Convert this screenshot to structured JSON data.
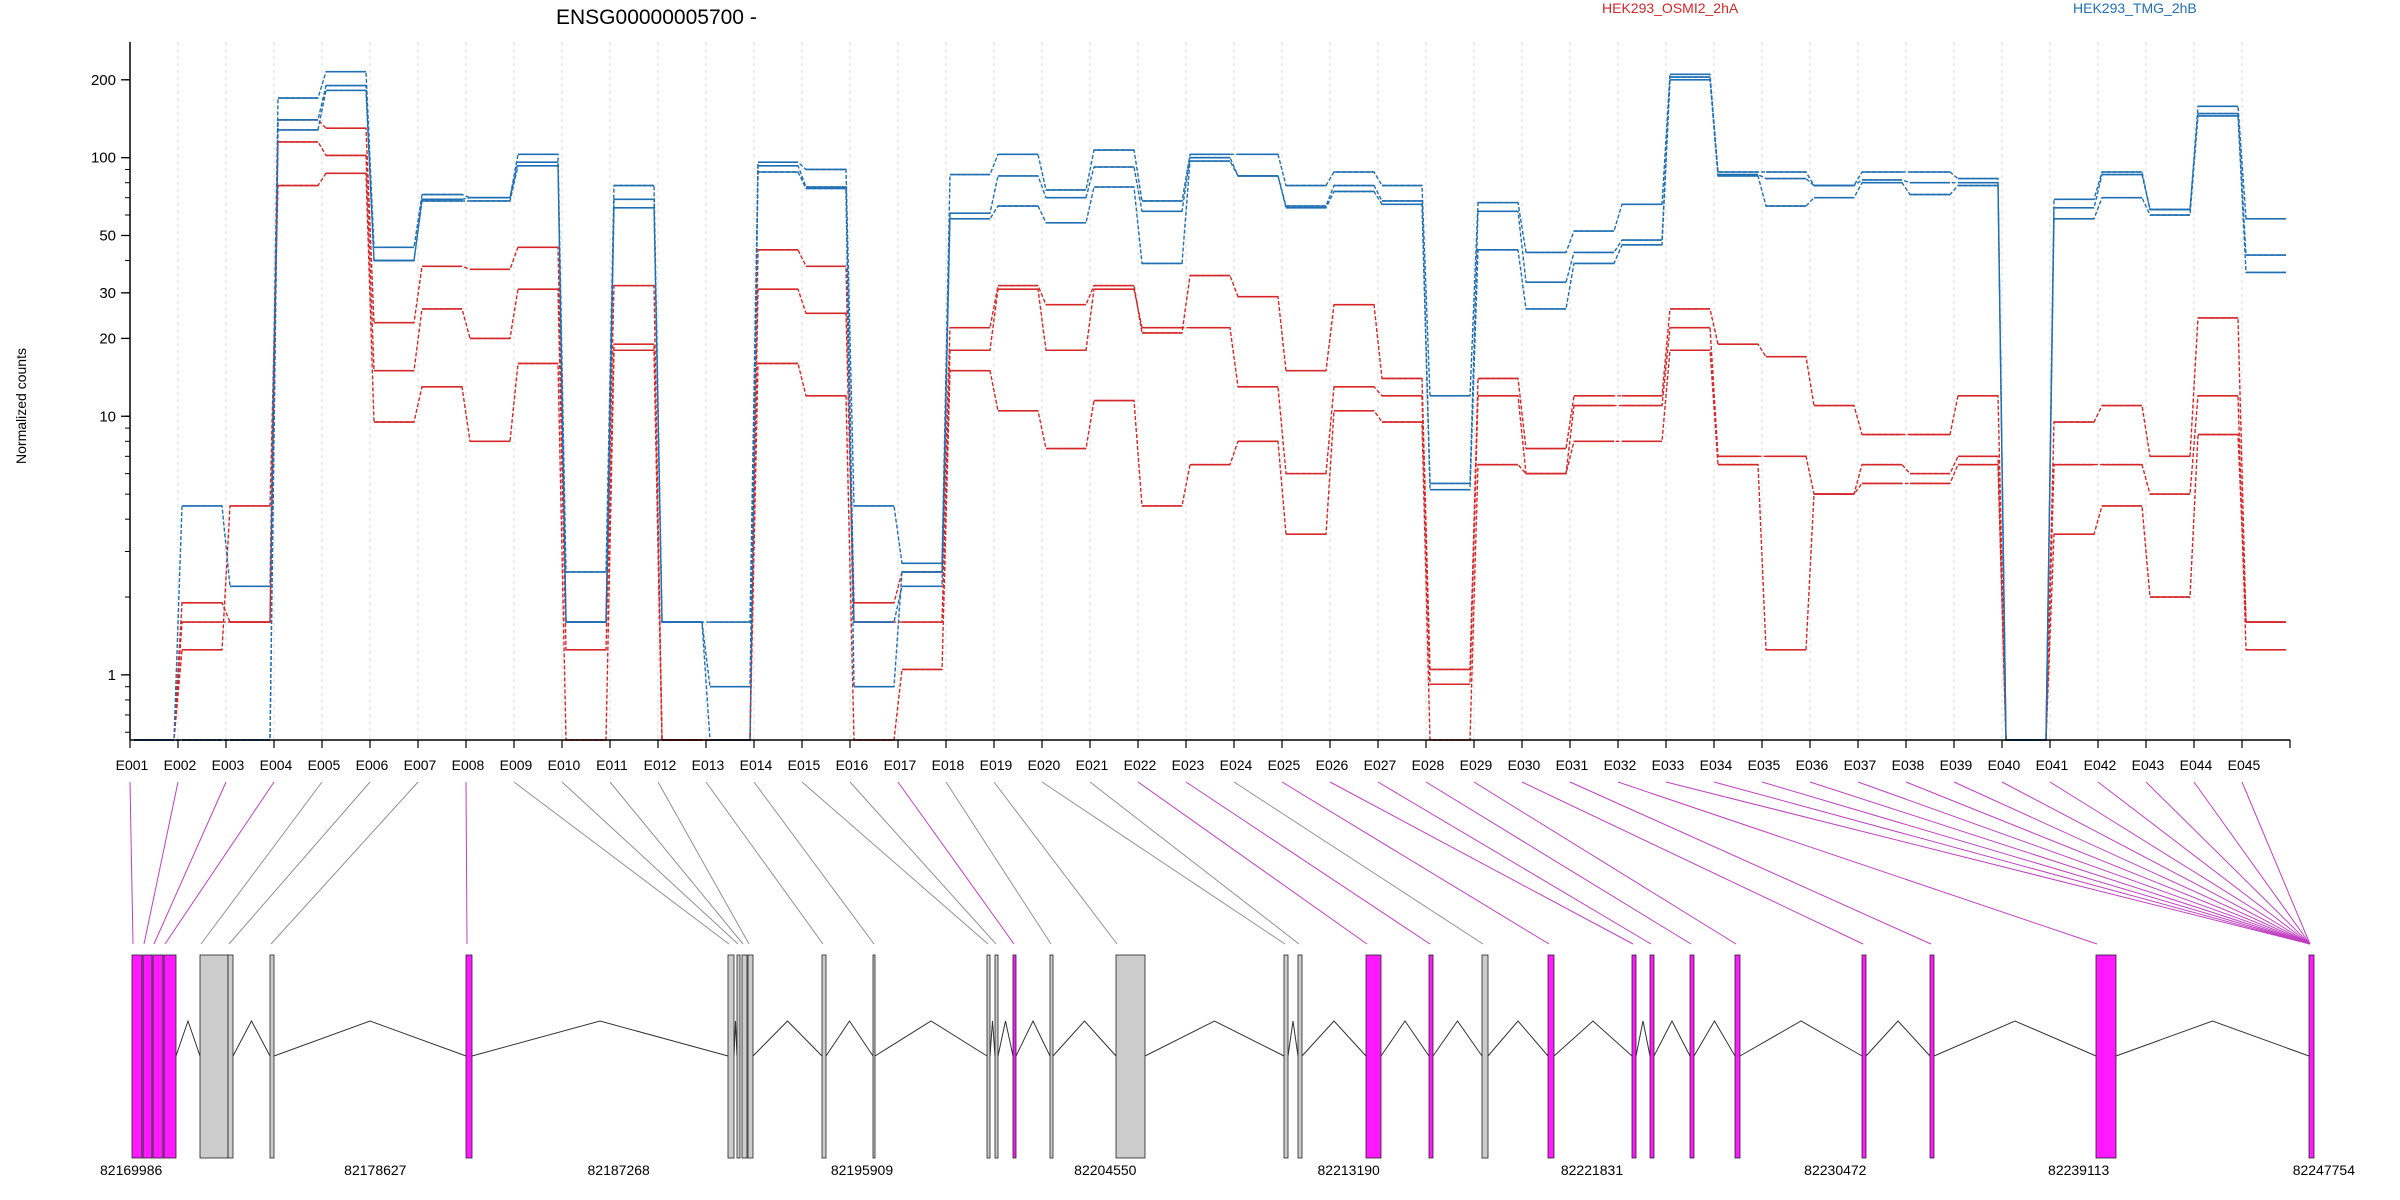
{
  "chart_data": {
    "type": "line",
    "title": "ENSG00000005700 -",
    "ylabel": "Normalized counts",
    "yscale": "log",
    "ylim": [
      0.56,
      280
    ],
    "yticks": [
      1,
      10,
      20,
      30,
      50,
      100,
      200
    ],
    "categories": [
      "E001",
      "E002",
      "E003",
      "E004",
      "E005",
      "E006",
      "E007",
      "E008",
      "E009",
      "E010",
      "E011",
      "E012",
      "E013",
      "E014",
      "E015",
      "E016",
      "E017",
      "E018",
      "E019",
      "E020",
      "E021",
      "E022",
      "E023",
      "E024",
      "E025",
      "E026",
      "E027",
      "E028",
      "E029",
      "E030",
      "E031",
      "E032",
      "E033",
      "E034",
      "E035",
      "E036",
      "E037",
      "E038",
      "E039",
      "E040",
      "E041",
      "E042",
      "E043",
      "E044",
      "E045"
    ],
    "legend": [
      {
        "name": "HEK293_OSMI2_2hA",
        "color": "#d62728"
      },
      {
        "name": "HEK293_TMG_2hB",
        "color": "#1f6fb4"
      }
    ],
    "series": [
      {
        "group": "HEK293_OSMI2_2hA",
        "color": "#d62728",
        "values": [
          0.56,
          1.9,
          1.6,
          140,
          130,
          23,
          38,
          37,
          45,
          1.6,
          32,
          0.56,
          0.56,
          44,
          38,
          1.9,
          2.5,
          22,
          32,
          27,
          32,
          21,
          35,
          29,
          15,
          27,
          14,
          1.05,
          14,
          7.5,
          12,
          12,
          26,
          19,
          17,
          11,
          8.5,
          8.5,
          12,
          0.56,
          9.5,
          11,
          7,
          24,
          1.6
        ]
      },
      {
        "group": "HEK293_OSMI2_2hA",
        "color": "#d62728",
        "values": [
          0.56,
          1.6,
          1.6,
          115,
          102,
          15,
          26,
          20,
          31,
          1.25,
          19,
          0.56,
          0.56,
          31,
          25,
          1.6,
          1.6,
          18,
          31,
          18,
          31,
          22,
          22,
          13,
          6,
          13,
          12,
          0.92,
          12,
          6,
          11,
          11,
          22,
          7,
          7,
          5,
          6.5,
          6,
          7,
          0.56,
          6.5,
          6.5,
          5,
          12,
          1.25
        ]
      },
      {
        "group": "HEK293_OSMI2_2hA",
        "color": "#d62728",
        "values": [
          0.56,
          1.25,
          4.5,
          78,
          87,
          9.5,
          13,
          8,
          16,
          0.56,
          18,
          0.56,
          0.56,
          16,
          12,
          0.56,
          1.05,
          15,
          10.5,
          7.5,
          11.5,
          4.5,
          6.5,
          8,
          3.5,
          10.5,
          9.5,
          0.56,
          6.5,
          6,
          8,
          8,
          18,
          6.5,
          1.25,
          5,
          5.5,
          5.5,
          6.5,
          0.56,
          3.5,
          4.5,
          2,
          8.5,
          1.6
        ]
      },
      {
        "group": "HEK293_TMG_2hB",
        "color": "#1f6fb4",
        "values": [
          0.56,
          4.5,
          2.2,
          170,
          215,
          45,
          72,
          70,
          103,
          2.5,
          78,
          1.6,
          1.6,
          96,
          90,
          4.5,
          2.7,
          86,
          103,
          75,
          107,
          68,
          103,
          103,
          78,
          88,
          78,
          12,
          67,
          43,
          52,
          66,
          210,
          88,
          88,
          78,
          88,
          88,
          83,
          0.56,
          69,
          88,
          63,
          158,
          58
        ]
      },
      {
        "group": "HEK293_TMG_2hB",
        "color": "#1f6fb4",
        "values": [
          0.56,
          0.56,
          0.56,
          140,
          190,
          40,
          69,
          70,
          96,
          1.6,
          69,
          1.6,
          0.56,
          93,
          77,
          1.6,
          2.2,
          61,
          85,
          70,
          92,
          62,
          100,
          85,
          65,
          78,
          68,
          5.5,
          62,
          33,
          43,
          48,
          205,
          86,
          83,
          78,
          82,
          80,
          80,
          0.56,
          64,
          86,
          63,
          148,
          42
        ]
      },
      {
        "group": "HEK293_TMG_2hB",
        "color": "#1f6fb4",
        "values": [
          0.56,
          0.56,
          0.56,
          128,
          182,
          40,
          68,
          68,
          93,
          1.6,
          64,
          1.6,
          0.9,
          88,
          76,
          0.9,
          2.5,
          58,
          65,
          56,
          77,
          39,
          97,
          85,
          64,
          74,
          66,
          5.2,
          44,
          26,
          39,
          46,
          200,
          85,
          65,
          70,
          80,
          72,
          78,
          0.56,
          58,
          70,
          60,
          145,
          36
        ]
      }
    ],
    "coordinate_ticks": [
      "82169986",
      "82178627",
      "82187268",
      "82195909",
      "82204550",
      "82213190",
      "82221831",
      "82230472",
      "82239113",
      "82247754"
    ]
  }
}
